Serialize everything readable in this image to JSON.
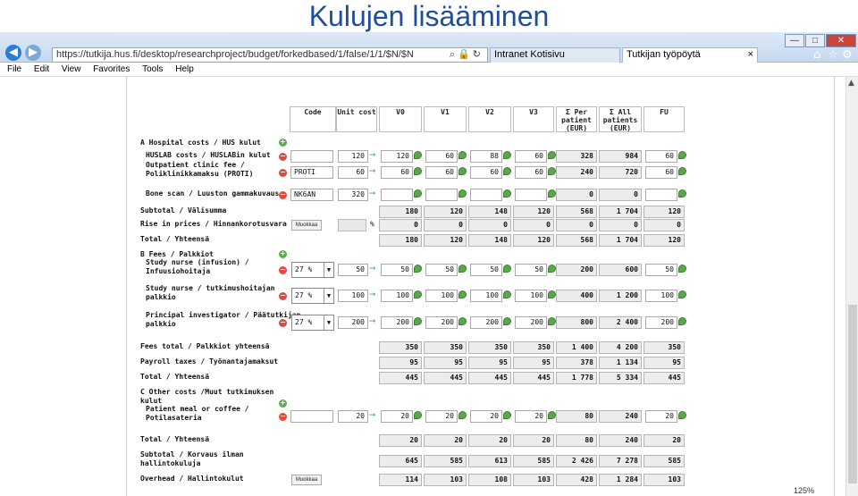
{
  "slide_title": "Kulujen lisääminen",
  "browser": {
    "url": "https://tutkija.hus.fi/desktop/researchproject/budget/forkedbased/1/false/1/1/$N/$N",
    "tab_inactive": "Intranet Kotisivu",
    "tab_active": "Tutkijan työpöytä"
  },
  "menu": [
    "File",
    "Edit",
    "View",
    "Favorites",
    "Tools",
    "Help"
  ],
  "columns": [
    "Code",
    "Unit cost",
    "V0",
    "V1",
    "V2",
    "V3",
    "Σ Per\npatient\n(EUR)",
    "Σ All\npatients\n(EUR)",
    "FU"
  ],
  "edit_label": "Muokkaa",
  "pct_sign": "%",
  "rows": [
    {
      "kind": "section",
      "label": "A Hospital costs / HUS kulut"
    },
    {
      "kind": "item",
      "label": "HUSLAB costs / HUSLABin kulut",
      "code": "",
      "unit": "120",
      "v": [
        "120",
        "60",
        "88",
        "60"
      ],
      "per": "328",
      "all": "984",
      "fu": "60"
    },
    {
      "kind": "item",
      "label": "Outpatient clinic fee /\nPoliklinikkamaksu (PROTI)",
      "code": "PROTI",
      "unit": "60",
      "v": [
        "60",
        "60",
        "60",
        "60"
      ],
      "per": "240",
      "all": "720",
      "fu": "60"
    },
    {
      "kind": "item",
      "label": "Bone scan / Luuston gammakuvaus",
      "code": "NK6AN",
      "unit": "320",
      "v": [
        "",
        "",
        "",
        ""
      ],
      "per": "0",
      "all": "0",
      "fu": ""
    },
    {
      "kind": "sum",
      "label": "Subtotal / Välisumma",
      "v": [
        "180",
        "120",
        "148",
        "120"
      ],
      "per": "568",
      "all": "1 704",
      "fu": "120"
    },
    {
      "kind": "rise",
      "label": "Rise in prices / Hinnankorotusvara",
      "v": [
        "0",
        "0",
        "0",
        "0"
      ],
      "per": "0",
      "all": "0",
      "fu": "0"
    },
    {
      "kind": "total",
      "label": "Total / Yhteensä",
      "v": [
        "180",
        "120",
        "148",
        "120"
      ],
      "per": "568",
      "all": "1 704",
      "fu": "120"
    },
    {
      "kind": "section",
      "label": "B Fees / Palkkiot"
    },
    {
      "kind": "fee",
      "label": "Study nurse (infusion) /\nInfuusiohoitaja",
      "pct": "27 %",
      "unit": "50",
      "v": [
        "50",
        "50",
        "50",
        "50"
      ],
      "per": "200",
      "all": "600",
      "fu": "50"
    },
    {
      "kind": "fee",
      "label": "Study nurse / tutkimushoitajan\npalkkio",
      "pct": "27 %",
      "unit": "100",
      "v": [
        "100",
        "100",
        "100",
        "100"
      ],
      "per": "400",
      "all": "1 200",
      "fu": "100"
    },
    {
      "kind": "fee",
      "label": "Principal investigator / Päätutkijan\npalkkio",
      "pct": "27 %",
      "unit": "200",
      "v": [
        "200",
        "200",
        "200",
        "200"
      ],
      "per": "800",
      "all": "2 400",
      "fu": "200"
    },
    {
      "kind": "sum",
      "label": "Fees total / Palkkiot yhteensä",
      "v": [
        "350",
        "350",
        "350",
        "350"
      ],
      "per": "1 400",
      "all": "4 200",
      "fu": "350"
    },
    {
      "kind": "sum",
      "label": "Payroll taxes / Työnantajamaksut",
      "v": [
        "95",
        "95",
        "95",
        "95"
      ],
      "per": "378",
      "all": "1 134",
      "fu": "95"
    },
    {
      "kind": "total",
      "label": "Total / Yhteensä",
      "v": [
        "445",
        "445",
        "445",
        "445"
      ],
      "per": "1 778",
      "all": "5 334",
      "fu": "445"
    },
    {
      "kind": "section",
      "label": "C Other costs /Muut tutkimuksen\nkulut"
    },
    {
      "kind": "item",
      "label": "Patient meal or coffee /\nPotilasateria",
      "code": "",
      "unit": "20",
      "v": [
        "20",
        "20",
        "20",
        "20"
      ],
      "per": "80",
      "all": "240",
      "fu": "20"
    },
    {
      "kind": "total",
      "label": "Total / Yhteensä",
      "v": [
        "20",
        "20",
        "20",
        "20"
      ],
      "per": "80",
      "all": "240",
      "fu": "20"
    },
    {
      "kind": "sum",
      "label": "Subtotal / Korvaus ilman\nhallintokuluja",
      "v": [
        "645",
        "585",
        "613",
        "585"
      ],
      "per": "2 426",
      "all": "7 278",
      "fu": "585"
    },
    {
      "kind": "overhead",
      "label": "Overhead / Hallintokulut",
      "v": [
        "114",
        "103",
        "108",
        "103"
      ],
      "per": "428",
      "all": "1 284",
      "fu": "103"
    }
  ],
  "zoom": "125%",
  "colors": {
    "title": "#1f4e9a",
    "add": "#56b14a",
    "remove": "#e24a3a"
  }
}
